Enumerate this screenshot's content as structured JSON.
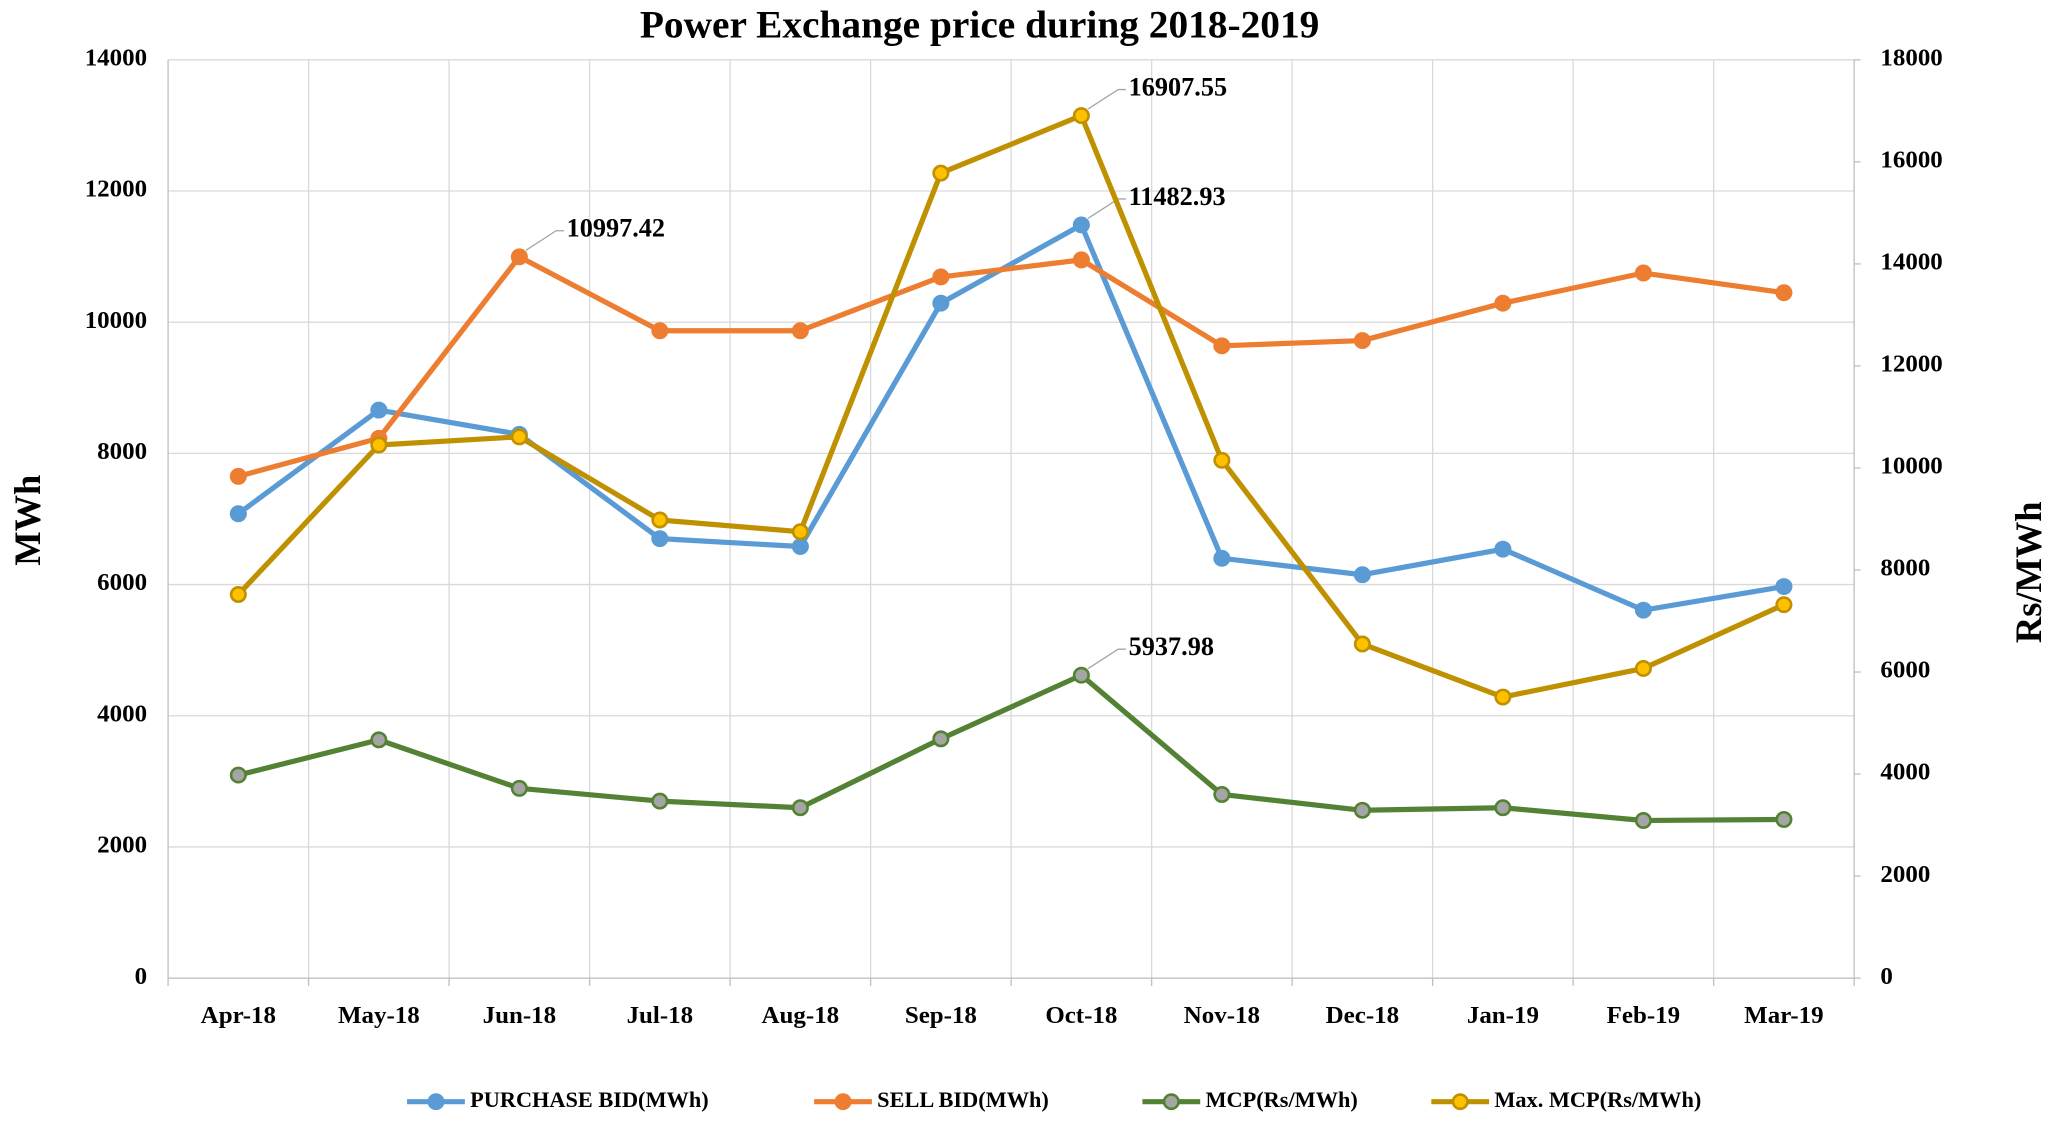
{
  "chart_data": {
    "type": "line",
    "title": "Power Exchange price during 2018-2019",
    "y_label": "MWh",
    "y2_label": "Rs/MWh",
    "categories": [
      "Apr-18",
      "May-18",
      "Jun-18",
      "Jul-18",
      "Aug-18",
      "Sep-18",
      "Oct-18",
      "Nov-18",
      "Dec-18",
      "Jan-19",
      "Feb-19",
      "Mar-19"
    ],
    "ylim": [
      0,
      14000
    ],
    "yticks": [
      0,
      2000,
      4000,
      6000,
      8000,
      10000,
      12000,
      14000
    ],
    "y2lim": [
      0,
      18000
    ],
    "y2ticks": [
      0,
      2000,
      4000,
      6000,
      8000,
      10000,
      12000,
      14000,
      16000,
      18000
    ],
    "grid": true,
    "legend": "bottom",
    "series": [
      {
        "name": "PURCHASE BID(MWh)",
        "color": "#5b9bd5",
        "marker_fill": "#5b9bd5",
        "values": [
          7080,
          8660,
          8290,
          6700,
          6580,
          10290,
          11482.93,
          6400,
          6150,
          6540,
          5610,
          5970
        ],
        "value_labels": [
          null,
          null,
          null,
          null,
          null,
          null,
          "11482.93",
          null,
          null,
          null,
          null,
          null
        ]
      },
      {
        "name": "SELL BID(MWh)",
        "color": "#ed7d31",
        "marker_fill": "#ed7d31",
        "values": [
          7650,
          8230,
          10997.42,
          9870,
          9870,
          10690,
          10950,
          9640,
          9720,
          10290,
          10750,
          10450
        ],
        "value_labels": [
          null,
          null,
          "10997.42",
          null,
          null,
          null,
          null,
          null,
          null,
          null,
          null,
          null
        ]
      },
      {
        "name": "MCP(Rs/MWh)",
        "color": "#548235",
        "marker_fill": "#a5a5a5",
        "axis": "y2",
        "values": [
          3980,
          4670,
          3720,
          3470,
          3340,
          4690,
          5937.98,
          3600,
          3290,
          3340,
          3090,
          3110
        ],
        "value_labels": [
          null,
          null,
          null,
          null,
          null,
          null,
          "5937.98",
          null,
          null,
          null,
          null,
          null
        ]
      },
      {
        "name": "Max. MCP(Rs/MWh)",
        "color": "#bf9000",
        "marker_fill": "#ffc000",
        "axis": "y2",
        "values": [
          7520,
          10450,
          10610,
          8980,
          8750,
          15780,
          16907.55,
          10150,
          6550,
          5510,
          6070,
          7320
        ],
        "value_labels": [
          null,
          null,
          null,
          null,
          null,
          null,
          "16907.55",
          null,
          null,
          null,
          null,
          null
        ]
      }
    ]
  }
}
